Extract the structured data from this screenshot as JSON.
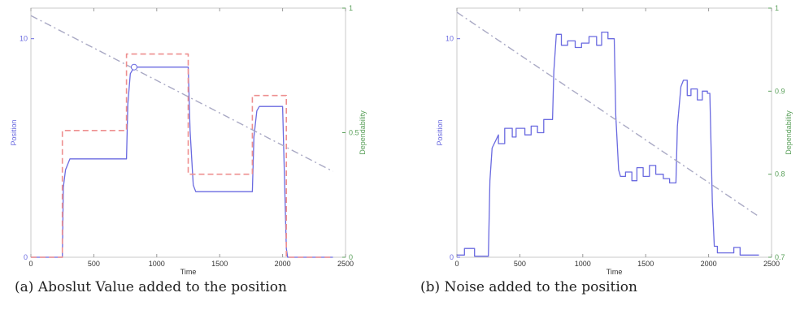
{
  "colors": {
    "position": "#6a6ae0",
    "reference": "#ee8f8f",
    "dependability": "#a9a9c4",
    "right_axis": "#5aa05a",
    "frame": "#c9c9c9"
  },
  "chart_data": [
    {
      "type": "line",
      "caption": "(a) Aboslut Value added to the position",
      "xlabel": "Time",
      "ylabel": "Position",
      "y2label": "Dependability",
      "xlim": [
        0,
        2500
      ],
      "ylim": [
        0,
        11.4
      ],
      "y2lim": [
        0,
        1
      ],
      "xticks": [
        0,
        500,
        1000,
        1500,
        2000,
        2500
      ],
      "yticks": [
        0,
        10
      ],
      "y2ticks": [
        0,
        0.5,
        1
      ],
      "y2ticklabels": [
        "0",
        "0.5",
        "1"
      ],
      "series": [
        {
          "role": "position",
          "style": "solid",
          "points": [
            [
              0,
              0
            ],
            [
              250,
              0
            ],
            [
              258,
              3.2
            ],
            [
              275,
              4.0
            ],
            [
              310,
              4.5
            ],
            [
              760,
              4.5
            ],
            [
              770,
              7.0
            ],
            [
              790,
              8.4
            ],
            [
              820,
              8.7
            ],
            [
              1250,
              8.7
            ],
            [
              1265,
              5.8
            ],
            [
              1290,
              3.3
            ],
            [
              1310,
              3.0
            ],
            [
              1760,
              3.0
            ],
            [
              1772,
              5.5
            ],
            [
              1795,
              6.7
            ],
            [
              1815,
              6.9
            ],
            [
              2000,
              6.9
            ],
            [
              2030,
              0.4
            ],
            [
              2040,
              0
            ],
            [
              2400,
              0
            ]
          ]
        },
        {
          "role": "reference",
          "style": "dashed",
          "points": [
            [
              0,
              0
            ],
            [
              250,
              0
            ],
            [
              250,
              5.8
            ],
            [
              760,
              5.8
            ],
            [
              760,
              9.3
            ],
            [
              1250,
              9.3
            ],
            [
              1250,
              3.8
            ],
            [
              1760,
              3.8
            ],
            [
              1760,
              7.4
            ],
            [
              2030,
              7.4
            ],
            [
              2030,
              0
            ],
            [
              2400,
              0
            ]
          ]
        },
        {
          "role": "dependability",
          "style": "dashdot",
          "axis": "right",
          "points": [
            [
              0,
              0.97
            ],
            [
              2400,
              0.345
            ]
          ]
        }
      ]
    },
    {
      "type": "line",
      "caption": "(b) Noise added to the position",
      "xlabel": "Time",
      "ylabel": "Position",
      "y2label": "Dependability",
      "xlim": [
        0,
        2500
      ],
      "ylim": [
        0,
        11.4
      ],
      "y2lim": [
        0.7,
        1
      ],
      "xticks": [
        0,
        500,
        1000,
        1500,
        2000,
        2500
      ],
      "yticks": [
        0,
        10
      ],
      "y2ticks": [
        0.7,
        0.8,
        0.9,
        1
      ],
      "y2ticklabels": [
        "0.7",
        "0.8",
        "0.9",
        "1"
      ],
      "series": [
        {
          "role": "position",
          "style": "solid",
          "points": [
            [
              0,
              0.1
            ],
            [
              60,
              0.1
            ],
            [
              60,
              0.4
            ],
            [
              140,
              0.4
            ],
            [
              140,
              0.05
            ],
            [
              250,
              0.05
            ],
            [
              262,
              3.5
            ],
            [
              280,
              5.0
            ],
            [
              330,
              5.6
            ],
            [
              330,
              5.2
            ],
            [
              380,
              5.2
            ],
            [
              380,
              5.9
            ],
            [
              440,
              5.9
            ],
            [
              440,
              5.5
            ],
            [
              470,
              5.5
            ],
            [
              470,
              5.9
            ],
            [
              540,
              5.9
            ],
            [
              540,
              5.6
            ],
            [
              590,
              5.6
            ],
            [
              590,
              6.0
            ],
            [
              640,
              6.0
            ],
            [
              640,
              5.7
            ],
            [
              690,
              5.7
            ],
            [
              690,
              6.3
            ],
            [
              760,
              6.3
            ],
            [
              770,
              8.5
            ],
            [
              790,
              10.2
            ],
            [
              830,
              10.2
            ],
            [
              830,
              9.7
            ],
            [
              880,
              9.7
            ],
            [
              880,
              9.9
            ],
            [
              940,
              9.9
            ],
            [
              940,
              9.6
            ],
            [
              990,
              9.6
            ],
            [
              990,
              9.8
            ],
            [
              1050,
              9.8
            ],
            [
              1050,
              10.1
            ],
            [
              1110,
              10.1
            ],
            [
              1110,
              9.7
            ],
            [
              1150,
              9.7
            ],
            [
              1150,
              10.3
            ],
            [
              1200,
              10.3
            ],
            [
              1200,
              10.0
            ],
            [
              1250,
              10.0
            ],
            [
              1262,
              6.5
            ],
            [
              1285,
              4.0
            ],
            [
              1300,
              3.7
            ],
            [
              1340,
              3.7
            ],
            [
              1340,
              3.9
            ],
            [
              1390,
              3.9
            ],
            [
              1390,
              3.5
            ],
            [
              1430,
              3.5
            ],
            [
              1430,
              4.1
            ],
            [
              1480,
              4.1
            ],
            [
              1480,
              3.7
            ],
            [
              1530,
              3.7
            ],
            [
              1530,
              4.2
            ],
            [
              1580,
              4.2
            ],
            [
              1580,
              3.8
            ],
            [
              1640,
              3.8
            ],
            [
              1640,
              3.6
            ],
            [
              1690,
              3.6
            ],
            [
              1690,
              3.4
            ],
            [
              1740,
              3.4
            ],
            [
              1752,
              6.0
            ],
            [
              1780,
              7.8
            ],
            [
              1800,
              8.1
            ],
            [
              1830,
              8.1
            ],
            [
              1830,
              7.4
            ],
            [
              1860,
              7.4
            ],
            [
              1860,
              7.7
            ],
            [
              1910,
              7.7
            ],
            [
              1910,
              7.2
            ],
            [
              1950,
              7.2
            ],
            [
              1950,
              7.6
            ],
            [
              1990,
              7.6
            ],
            [
              1990,
              7.5
            ],
            [
              2010,
              7.5
            ],
            [
              2030,
              2.5
            ],
            [
              2045,
              0.5
            ],
            [
              2070,
              0.5
            ],
            [
              2070,
              0.2
            ],
            [
              2200,
              0.2
            ],
            [
              2200,
              0.45
            ],
            [
              2250,
              0.45
            ],
            [
              2250,
              0.1
            ],
            [
              2400,
              0.1
            ]
          ]
        },
        {
          "role": "dependability",
          "style": "dashdot",
          "axis": "right",
          "points": [
            [
              0,
              0.995
            ],
            [
              2400,
              0.749
            ]
          ]
        }
      ]
    }
  ]
}
